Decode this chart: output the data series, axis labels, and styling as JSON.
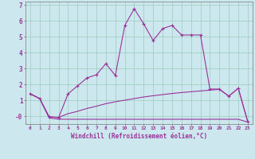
{
  "xlabel": "Windchill (Refroidissement éolien,°C)",
  "xlim": [
    -0.5,
    23.5
  ],
  "ylim": [
    -0.5,
    7.2
  ],
  "yticks": [
    0,
    1,
    2,
    3,
    4,
    5,
    6,
    7
  ],
  "ytick_labels": [
    "-0",
    "1",
    "2",
    "3",
    "4",
    "5",
    "6",
    "7"
  ],
  "xticks": [
    0,
    1,
    2,
    3,
    4,
    5,
    6,
    7,
    8,
    9,
    10,
    11,
    12,
    13,
    14,
    15,
    16,
    17,
    18,
    19,
    20,
    21,
    22,
    23
  ],
  "bg_color": "#cce8ee",
  "line_color": "#993399",
  "grid_color": "#99ccbb",
  "line1_x": [
    0,
    1,
    2,
    3,
    4,
    5,
    6,
    7,
    8,
    9,
    10,
    11,
    12,
    13,
    14,
    15,
    16,
    17,
    18,
    19,
    20,
    21,
    22,
    23
  ],
  "line1_y": [
    1.4,
    1.1,
    -0.05,
    -0.1,
    1.4,
    1.9,
    2.4,
    2.6,
    3.3,
    2.55,
    5.7,
    6.75,
    5.8,
    4.75,
    5.5,
    5.7,
    5.1,
    5.1,
    5.1,
    1.7,
    1.7,
    1.25,
    1.75,
    -0.35
  ],
  "line2_x": [
    0,
    1,
    2,
    3,
    4,
    5,
    6,
    7,
    8,
    9,
    10,
    11,
    12,
    13,
    14,
    15,
    16,
    17,
    18,
    19,
    20,
    21,
    22,
    23
  ],
  "line2_y": [
    1.4,
    1.1,
    -0.05,
    -0.08,
    0.15,
    0.3,
    0.48,
    0.62,
    0.78,
    0.9,
    1.0,
    1.1,
    1.2,
    1.28,
    1.35,
    1.42,
    1.48,
    1.53,
    1.58,
    1.63,
    1.68,
    1.25,
    1.75,
    -0.35
  ],
  "line3_x": [
    0,
    1,
    2,
    3,
    4,
    5,
    6,
    7,
    8,
    9,
    10,
    11,
    12,
    13,
    14,
    15,
    16,
    17,
    18,
    19,
    20,
    21,
    22,
    23
  ],
  "line3_y": [
    1.4,
    1.1,
    -0.12,
    -0.2,
    -0.2,
    -0.2,
    -0.2,
    -0.2,
    -0.2,
    -0.2,
    -0.2,
    -0.2,
    -0.2,
    -0.2,
    -0.2,
    -0.2,
    -0.2,
    -0.2,
    -0.2,
    -0.2,
    -0.2,
    -0.2,
    -0.2,
    -0.38
  ]
}
